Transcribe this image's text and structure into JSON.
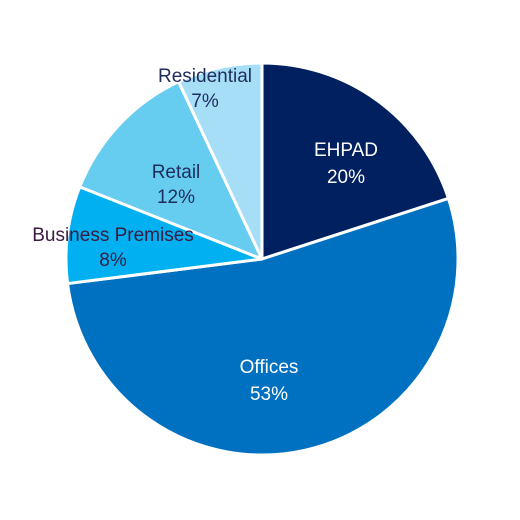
{
  "chart_data": {
    "type": "pie",
    "title": "",
    "start": "12 o'clock, clockwise",
    "slices": [
      {
        "label": "EHPAD",
        "value": 20,
        "value_label": "20%",
        "color": "#002060",
        "text_color": "#ffffff"
      },
      {
        "label": "Offices",
        "value": 53,
        "value_label": "53%",
        "color": "#0070C0",
        "text_color": "#ffffff"
      },
      {
        "label": "Business Premises",
        "value": 8,
        "value_label": "8%",
        "color": "#00B0F0",
        "text_color": "#3B1A40"
      },
      {
        "label": "Retail",
        "value": 12,
        "value_label": "12%",
        "color": "#66CCF0",
        "text_color": "#1F2D5C"
      },
      {
        "label": "Residential",
        "value": 7,
        "value_label": "7%",
        "color": "#A6DDF7",
        "text_color": "#1F2D5C"
      }
    ]
  }
}
